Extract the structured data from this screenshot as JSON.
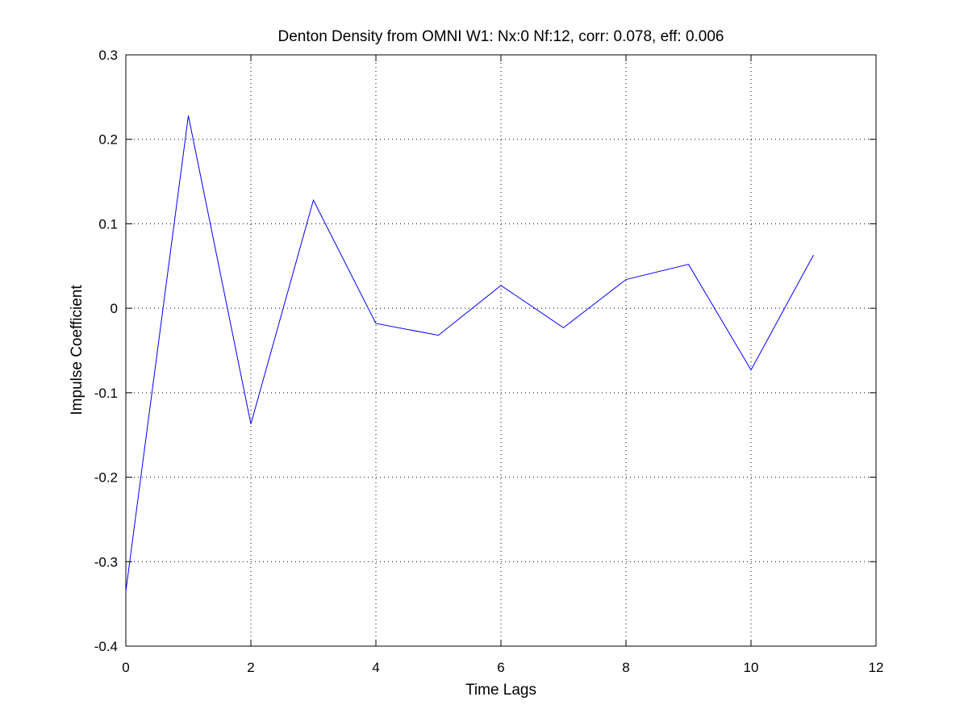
{
  "chart_data": {
    "type": "line",
    "title": "Denton Density from OMNI W1: Nx:0 Nf:12, corr: 0.078, eff: 0.006",
    "xlabel": "Time Lags",
    "ylabel": "Impulse Coefficient",
    "xlim": [
      0,
      12
    ],
    "ylim": [
      -0.4,
      0.3
    ],
    "xticks": [
      0,
      2,
      4,
      6,
      8,
      10,
      12
    ],
    "yticks": [
      -0.4,
      -0.3,
      -0.2,
      -0.1,
      0,
      0.1,
      0.2,
      0.3
    ],
    "xtick_labels": [
      "0",
      "2",
      "4",
      "6",
      "8",
      "10",
      "12"
    ],
    "ytick_labels": [
      "-0.4",
      "-0.3",
      "-0.2",
      "-0.1",
      "0",
      "0.1",
      "0.2",
      "0.3"
    ],
    "grid": true,
    "series": [
      {
        "color": "#0000ff",
        "x": [
          0,
          1,
          2,
          3,
          4,
          5,
          6,
          7,
          8,
          9,
          10,
          11
        ],
        "values": [
          -0.335,
          0.228,
          -0.137,
          0.128,
          -0.018,
          -0.032,
          0.027,
          -0.023,
          0.034,
          0.052,
          -0.073,
          0.063
        ]
      }
    ]
  }
}
